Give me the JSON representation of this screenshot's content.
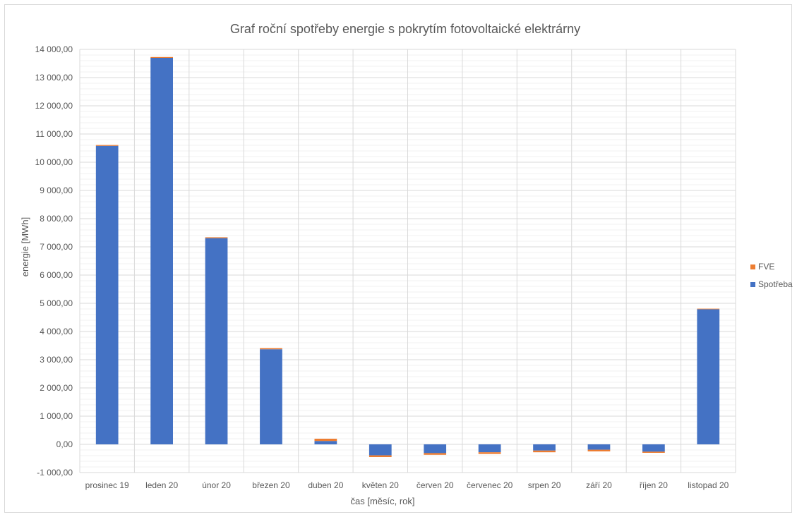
{
  "chart_data": {
    "type": "bar",
    "stacked": true,
    "title": "Graf roční spotřeby energie s pokrytím fotovoltaické elektrárny",
    "xlabel": "čas [měsíc, rok]",
    "ylabel": "energie [MWh]",
    "ylim": [
      -1000,
      14000
    ],
    "ytick_step": 1000,
    "ytick_labels": [
      "-1 000,00",
      "0,00",
      "1 000,00",
      "2 000,00",
      "3 000,00",
      "4 000,00",
      "5 000,00",
      "6 000,00",
      "7 000,00",
      "8 000,00",
      "9 000,00",
      "10 000,00",
      "11 000,00",
      "12 000,00",
      "13 000,00",
      "14 000,00"
    ],
    "grid": true,
    "legend_position": "right",
    "categories": [
      "prosinec 19",
      "leden 20",
      "únor 20",
      "březen 20",
      "duben 20",
      "květen 20",
      "červen 20",
      "červenec 20",
      "srpen 20",
      "září 20",
      "říjen 20",
      "listopad 20"
    ],
    "series": [
      {
        "name": "Spotřeba",
        "color": "#4472C4",
        "values": [
          10580,
          13700,
          7310,
          3370,
          120,
          -390,
          -310,
          -280,
          -220,
          -190,
          -260,
          4790
        ]
      },
      {
        "name": "FVE",
        "color": "#ED7D31",
        "values": [
          30,
          30,
          30,
          40,
          80,
          -60,
          -60,
          -60,
          -60,
          -60,
          -40,
          20
        ]
      }
    ],
    "legend": [
      "FVE",
      "Spotřeba"
    ]
  }
}
